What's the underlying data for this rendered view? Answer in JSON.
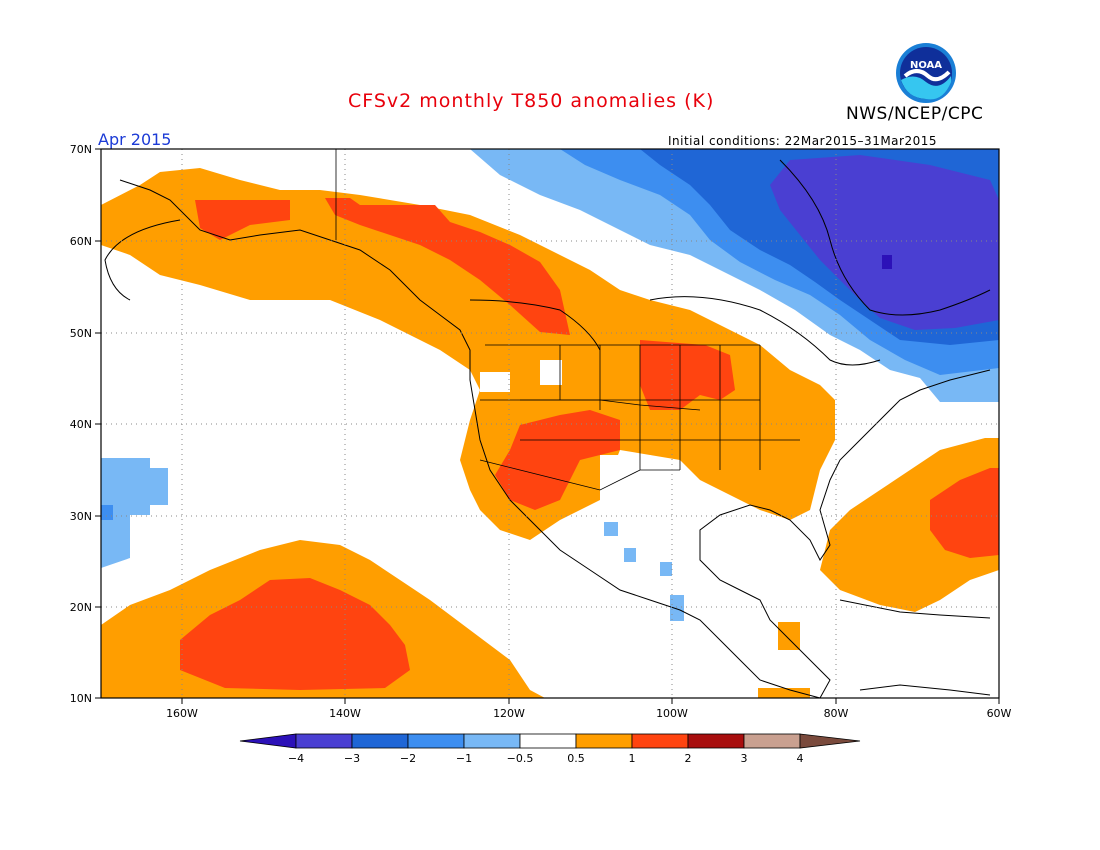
{
  "header": {
    "title": "CFSv2 monthly T850 anomalies (K)",
    "agency": "NWS/NCEP/CPC",
    "logo_text": "NOAA",
    "period": "Apr 2015",
    "initial_conditions": "Initial conditions: 22Mar2015–31Mar2015"
  },
  "map": {
    "lat_labels": [
      "70N",
      "60N",
      "50N",
      "40N",
      "30N",
      "20N",
      "10N"
    ],
    "lon_labels": [
      "160W",
      "140W",
      "120W",
      "100W",
      "80W",
      "60W"
    ],
    "lat_range": [
      10,
      70
    ],
    "lon_range": [
      -170,
      -60
    ],
    "grid": "dotted"
  },
  "colorbar": {
    "labels": [
      "−4",
      "−3",
      "−2",
      "−1",
      "−0.5",
      "0.5",
      "1",
      "2",
      "3",
      "4"
    ],
    "colors": [
      "#2c11b8",
      "#4a3fd2",
      "#1f66d6",
      "#3d8ef0",
      "#78b8f5",
      "#ffffff",
      "#ff9e00",
      "#ff4410",
      "#a80e0e",
      "#c9a090",
      "#7a4a3c"
    ],
    "arrow_left_color": "#2c11b8",
    "arrow_right_color": "#7a4a3c"
  }
}
